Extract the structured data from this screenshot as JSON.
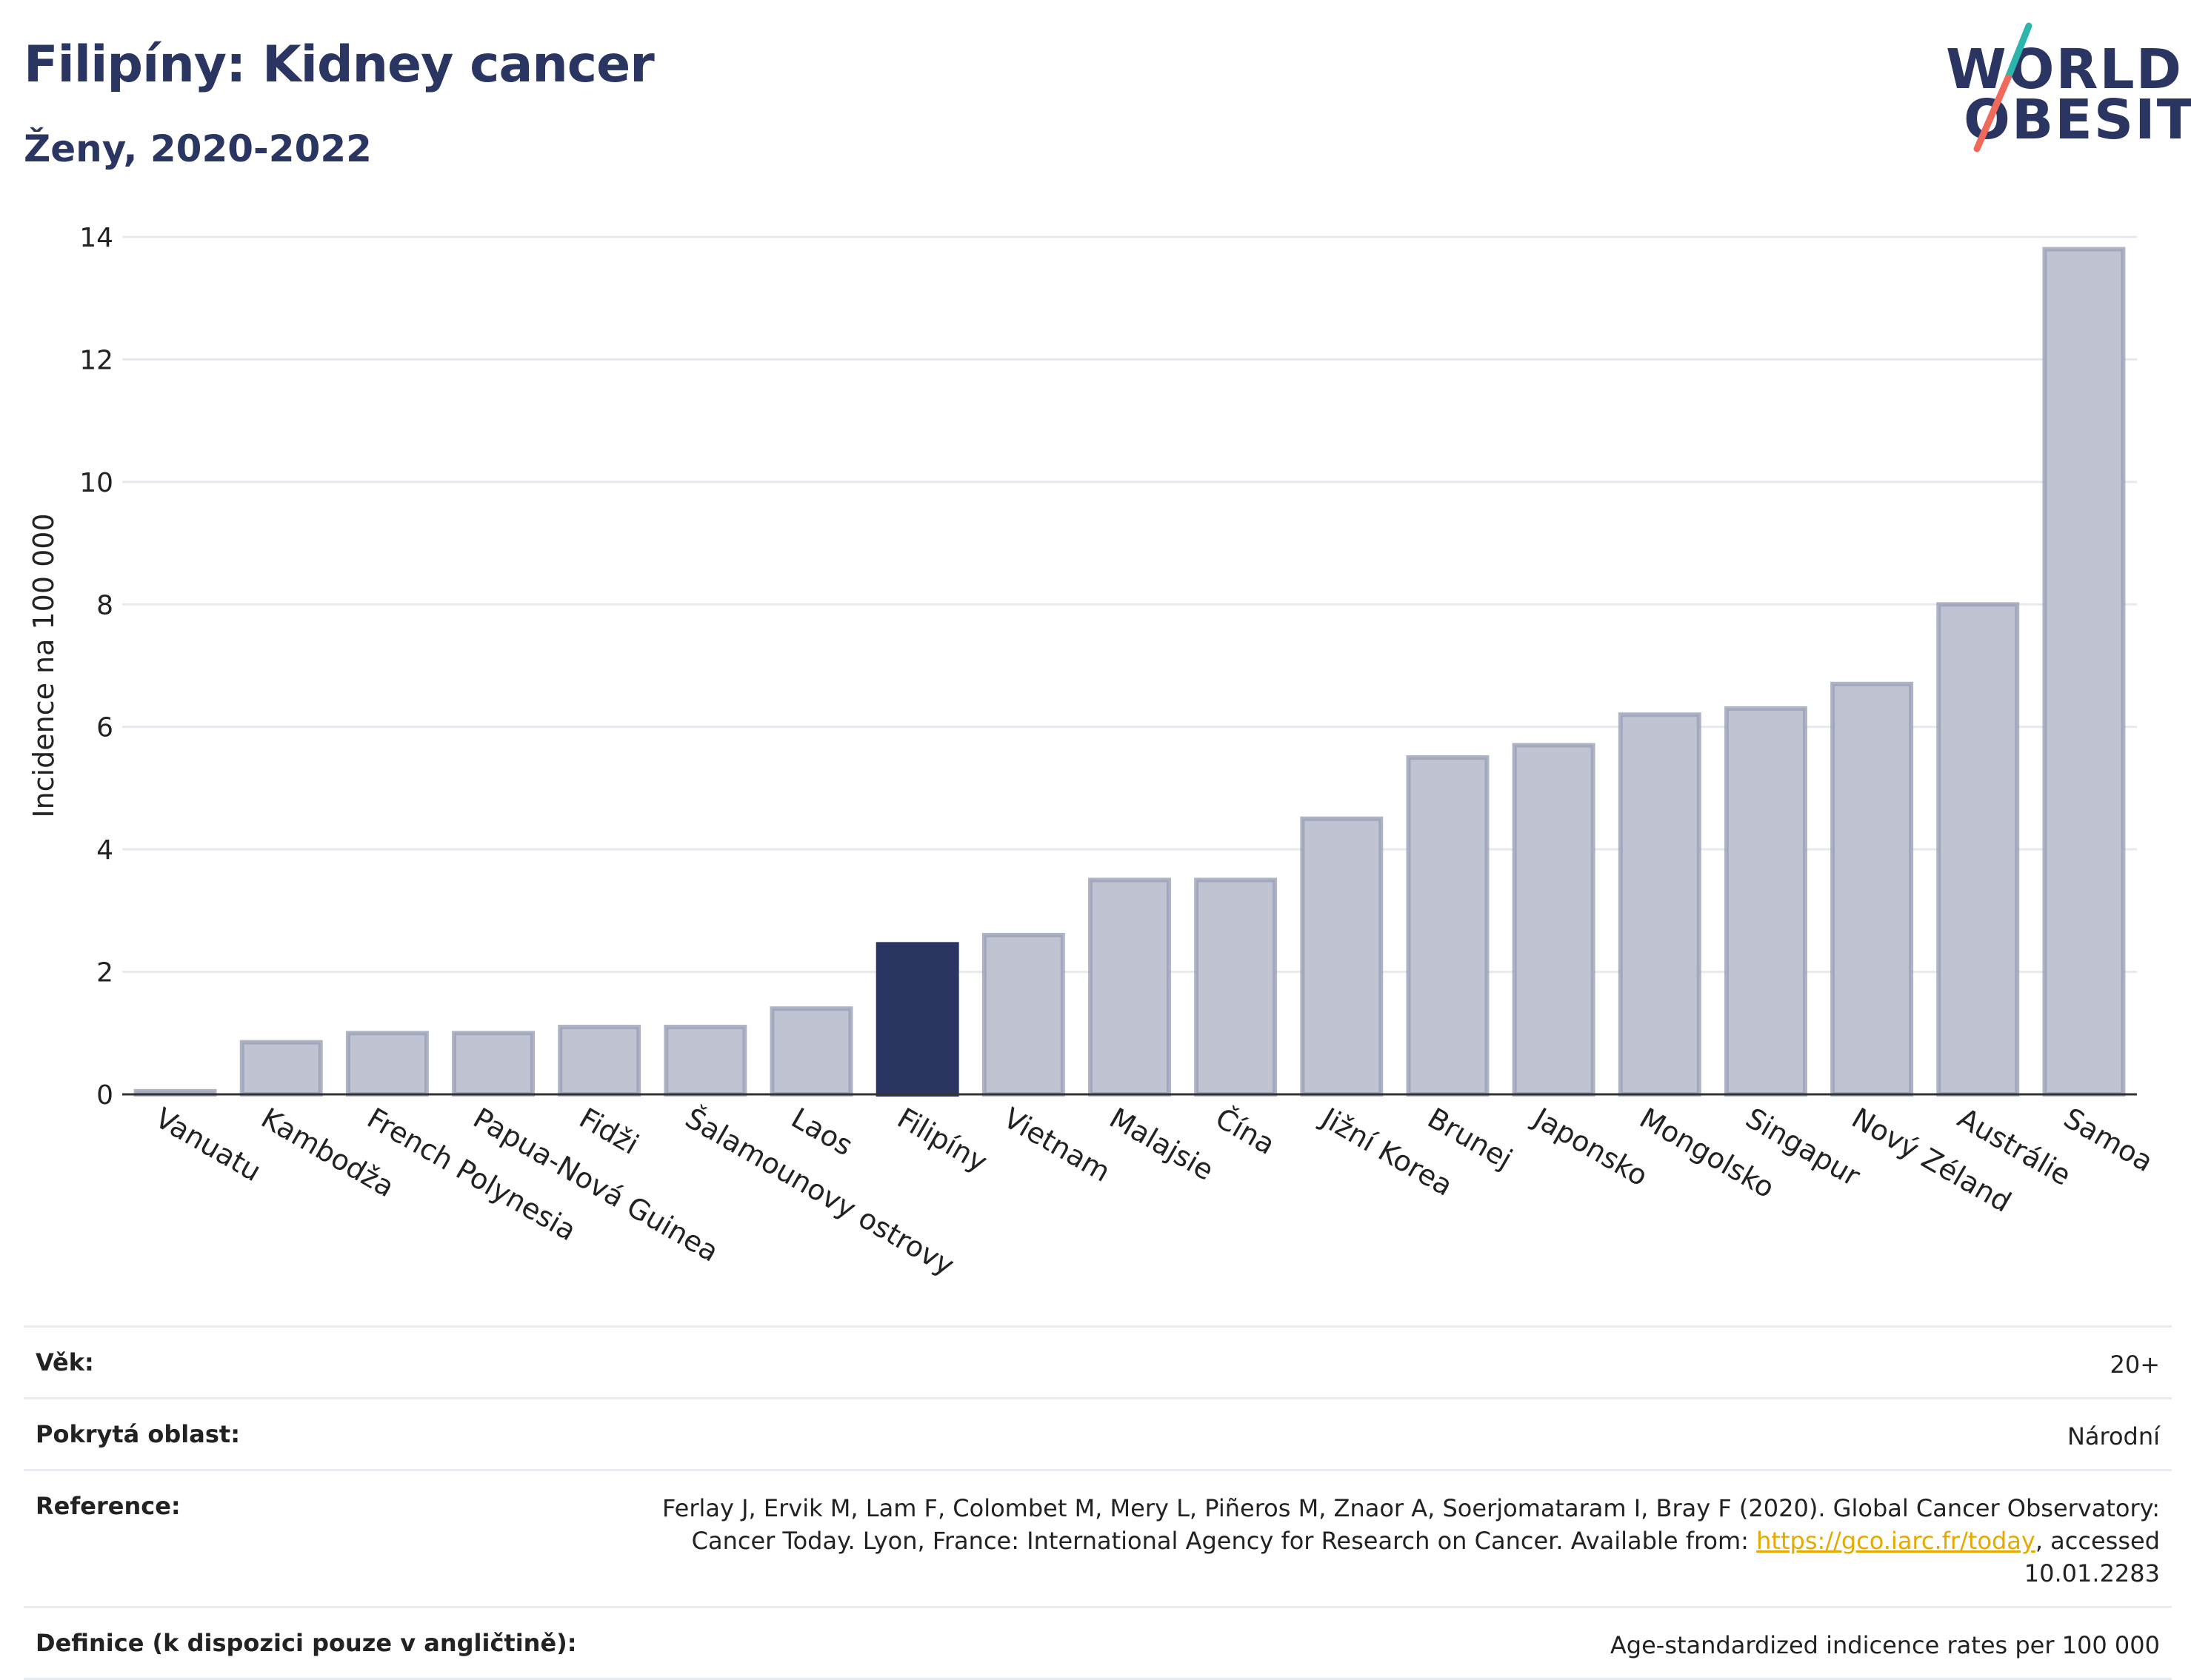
{
  "header": {
    "title": "Filipíny: Kidney cancer",
    "subtitle": "Ženy, 2020-2022"
  },
  "logo": {
    "line1": "WORLD",
    "line2": "OBESITY",
    "accent_colors": [
      "#2bb5ad",
      "#ef6a5a"
    ]
  },
  "chart_data": {
    "type": "bar",
    "ylabel": "Incidence na 100 000",
    "ylim": [
      0,
      14
    ],
    "yticks": [
      0,
      2,
      4,
      6,
      8,
      10,
      12,
      14
    ],
    "grid": true,
    "categories": [
      "Vanuatu",
      "Kambodža",
      "French Polynesia",
      "Papua-Nová Guinea",
      "Fidži",
      "Šalamounovy ostrovy",
      "Laos",
      "Filipíny",
      "Vietnam",
      "Malajsie",
      "Čína",
      "Jižní Korea",
      "Brunej",
      "Japonsko",
      "Mongolsko",
      "Singapur",
      "Nový Zéland",
      "Austrálie",
      "Samoa"
    ],
    "values": [
      0.05,
      0.85,
      1.0,
      1.0,
      1.1,
      1.1,
      1.4,
      2.45,
      2.6,
      3.5,
      3.5,
      4.5,
      5.5,
      5.7,
      6.2,
      6.3,
      6.7,
      8.0,
      13.8
    ],
    "highlight": "Filipíny",
    "colors": {
      "bar": "#c0c4d2",
      "bar_edge": "#9aa0b8",
      "highlight": "#2a3562"
    }
  },
  "info": {
    "rows": [
      {
        "label": "Věk:",
        "value": "20+"
      },
      {
        "label": "Pokrytá oblast:",
        "value": "Národní"
      },
      {
        "label": "Reference:",
        "value_pre": "Ferlay J, Ervik M, Lam F, Colombet M, Mery L, Piñeros M, Znaor A, Soerjomataram I, Bray F (2020). Global Cancer Observatory: Cancer Today. Lyon, France: International Agency for Research on Cancer. Available from: ",
        "link": "https://gco.iarc.fr/today",
        "value_post": ", accessed 10.01.2283"
      },
      {
        "label": "Definice (k dispozici pouze v angličtině):",
        "value": "Age-standardized indicence rates per 100 000"
      }
    ]
  }
}
